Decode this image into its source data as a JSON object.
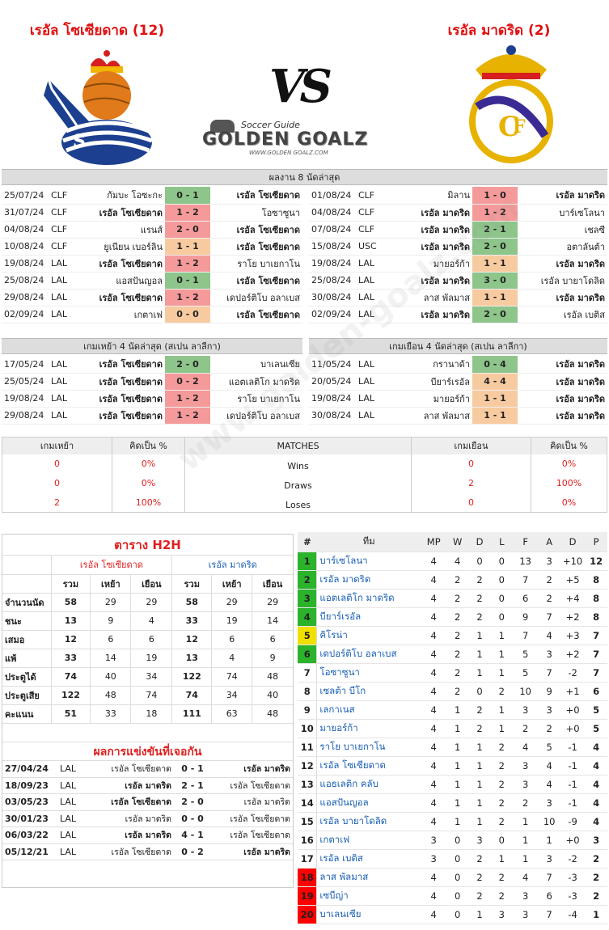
{
  "header": {
    "home_title": "เรอัล โซเซียดาด (12)",
    "away_title": "เรอัล มาดริด (2)",
    "vs": "VS",
    "brand_small": "Soccer Guide",
    "brand_big": "GOLDEN GOALZ",
    "brand_url": "WWW.GOLDEN GOALZ.COM",
    "home_logo": "real-sociedad-crest",
    "away_logo": "real-madrid-crest"
  },
  "last8": {
    "title": "ผลงาน 8 นัดล่าสุด",
    "home": [
      {
        "date": "25/07/24",
        "comp": "CLF",
        "home": "กัมบะ โอซะกะ",
        "score": "0 - 1",
        "away": "เรอัล โซเซียดาด",
        "color": "g",
        "bold": "away"
      },
      {
        "date": "31/07/24",
        "comp": "CLF",
        "home": "เรอัล โซเซียดาด",
        "score": "1 - 2",
        "away": "โอซาซูนา",
        "color": "r",
        "bold": "home"
      },
      {
        "date": "04/08/24",
        "comp": "CLF",
        "home": "แรนส์",
        "score": "2 - 0",
        "away": "เรอัล โซเซียดาด",
        "color": "r",
        "bold": "away"
      },
      {
        "date": "10/08/24",
        "comp": "CLF",
        "home": "ยูเนียน เบอร์ลิน",
        "score": "1 - 1",
        "away": "เรอัล โซเซียดาด",
        "color": "o",
        "bold": "away"
      },
      {
        "date": "19/08/24",
        "comp": "LAL",
        "home": "เรอัล โซเซียดาด",
        "score": "1 - 2",
        "away": "ราโย บาเยกาโน",
        "color": "r",
        "bold": "home"
      },
      {
        "date": "25/08/24",
        "comp": "LAL",
        "home": "แอสปันญอล",
        "score": "0 - 1",
        "away": "เรอัล โซเซียดาด",
        "color": "g",
        "bold": "away"
      },
      {
        "date": "29/08/24",
        "comp": "LAL",
        "home": "เรอัล โซเซียดาด",
        "score": "1 - 2",
        "away": "เดปอร์ติโบ อลาเบส",
        "color": "r",
        "bold": "home"
      },
      {
        "date": "02/09/24",
        "comp": "LAL",
        "home": "เกตาเฟ",
        "score": "0 - 0",
        "away": "เรอัล โซเซียดาด",
        "color": "o",
        "bold": "away"
      }
    ],
    "away": [
      {
        "date": "01/08/24",
        "comp": "CLF",
        "home": "มิลาน",
        "score": "1 - 0",
        "away": "เรอัล มาดริด",
        "color": "r",
        "bold": "away"
      },
      {
        "date": "04/08/24",
        "comp": "CLF",
        "home": "เรอัล มาดริด",
        "score": "1 - 2",
        "away": "บาร์เซโลนา",
        "color": "r",
        "bold": "home"
      },
      {
        "date": "07/08/24",
        "comp": "CLF",
        "home": "เรอัล มาดริด",
        "score": "2 - 1",
        "away": "เชลซี",
        "color": "g",
        "bold": "home"
      },
      {
        "date": "15/08/24",
        "comp": "USC",
        "home": "เรอัล มาดริด",
        "score": "2 - 0",
        "away": "อตาลันต้า",
        "color": "g",
        "bold": "home"
      },
      {
        "date": "19/08/24",
        "comp": "LAL",
        "home": "มายอร์ก้า",
        "score": "1 - 1",
        "away": "เรอัล มาดริด",
        "color": "o",
        "bold": "away"
      },
      {
        "date": "25/08/24",
        "comp": "LAL",
        "home": "เรอัล มาดริด",
        "score": "3 - 0",
        "away": "เรอัล บายาโดลิด",
        "color": "g",
        "bold": "home"
      },
      {
        "date": "30/08/24",
        "comp": "LAL",
        "home": "ลาส พัลมาส",
        "score": "1 - 1",
        "away": "เรอัล มาดริด",
        "color": "o",
        "bold": "away"
      },
      {
        "date": "02/09/24",
        "comp": "LAL",
        "home": "เรอัล มาดริด",
        "score": "2 - 0",
        "away": "เรอัล เบติส",
        "color": "g",
        "bold": "home"
      }
    ]
  },
  "last4": {
    "home_title": "เกมเหย้า 4 นัดล่าสุด (สเปน ลาลีกา)",
    "away_title": "เกมเยือน 4 นัดล่าสุด (สเปน ลาลีกา)",
    "home": [
      {
        "date": "17/05/24",
        "comp": "LAL",
        "home": "เรอัล โซเซียดาด",
        "score": "2 - 0",
        "away": "บาเลนเซีย",
        "color": "g",
        "bold": "home"
      },
      {
        "date": "25/05/24",
        "comp": "LAL",
        "home": "เรอัล โซเซียดาด",
        "score": "0 - 2",
        "away": "แอตเลติโก มาดริด",
        "color": "r",
        "bold": "home"
      },
      {
        "date": "19/08/24",
        "comp": "LAL",
        "home": "เรอัล โซเซียดาด",
        "score": "1 - 2",
        "away": "ราโย บาเยกาโน",
        "color": "r",
        "bold": "home"
      },
      {
        "date": "29/08/24",
        "comp": "LAL",
        "home": "เรอัล โซเซียดาด",
        "score": "1 - 2",
        "away": "เดปอร์ติโบ อลาเบส",
        "color": "r",
        "bold": "home"
      }
    ],
    "away": [
      {
        "date": "11/05/24",
        "comp": "LAL",
        "home": "กรานาด้า",
        "score": "0 - 4",
        "away": "เรอัล มาดริด",
        "color": "g",
        "bold": "away"
      },
      {
        "date": "20/05/24",
        "comp": "LAL",
        "home": "บียาร์เรอัล",
        "score": "4 - 4",
        "away": "เรอัล มาดริด",
        "color": "o",
        "bold": "away"
      },
      {
        "date": "19/08/24",
        "comp": "LAL",
        "home": "มายอร์ก้า",
        "score": "1 - 1",
        "away": "เรอัล มาดริด",
        "color": "o",
        "bold": "away"
      },
      {
        "date": "30/08/24",
        "comp": "LAL",
        "home": "ลาส พัลมาส",
        "score": "1 - 1",
        "away": "เรอัล มาดริด",
        "color": "o",
        "bold": "away"
      }
    ]
  },
  "matches": {
    "headers": [
      "เกมเหย้า",
      "คิดเป็น %",
      "MATCHES",
      "เกมเยือน",
      "คิดเป็น %"
    ],
    "rows": [
      {
        "h": "0",
        "hp": "0%",
        "label": "Wins",
        "a": "0",
        "ap": "0%"
      },
      {
        "h": "0",
        "hp": "0%",
        "label": "Draws",
        "a": "2",
        "ap": "100%"
      },
      {
        "h": "2",
        "hp": "100%",
        "label": "Loses",
        "a": "0",
        "ap": "0%"
      }
    ]
  },
  "h2h": {
    "title": "ตาราง H2H",
    "home_team": "เรอัล โซเซียดาด",
    "away_team": "เรอัล มาดริด",
    "cols": [
      "รวม",
      "เหย้า",
      "เยือน",
      "รวม",
      "เหย้า",
      "เยือน"
    ],
    "rows": [
      {
        "label": "จำนวนนัด",
        "v": [
          "58",
          "29",
          "29",
          "58",
          "29",
          "29"
        ]
      },
      {
        "label": "ชนะ",
        "v": [
          "13",
          "9",
          "4",
          "33",
          "19",
          "14"
        ]
      },
      {
        "label": "เสมอ",
        "v": [
          "12",
          "6",
          "6",
          "12",
          "6",
          "6"
        ]
      },
      {
        "label": "แพ้",
        "v": [
          "33",
          "14",
          "19",
          "13",
          "4",
          "9"
        ]
      },
      {
        "label": "ประตูได้",
        "v": [
          "74",
          "40",
          "34",
          "122",
          "74",
          "48"
        ]
      },
      {
        "label": "ประตูเสีย",
        "v": [
          "122",
          "48",
          "74",
          "74",
          "34",
          "40"
        ]
      },
      {
        "label": "คะแนน",
        "v": [
          "51",
          "33",
          "18",
          "111",
          "63",
          "48"
        ]
      }
    ],
    "results_title": "ผลการแข่งขันที่เจอกัน",
    "results": [
      {
        "date": "27/04/24",
        "comp": "LAL",
        "home": "เรอัล โซเซียดาด",
        "score": "0 - 1",
        "away": "เรอัล มาดริด",
        "bold": "away"
      },
      {
        "date": "18/09/23",
        "comp": "LAL",
        "home": "เรอัล มาดริด",
        "score": "2 - 1",
        "away": "เรอัล โซเซียดาด",
        "bold": "home"
      },
      {
        "date": "03/05/23",
        "comp": "LAL",
        "home": "เรอัล โซเซียดาด",
        "score": "2 - 0",
        "away": "เรอัล มาดริด",
        "bold": "home"
      },
      {
        "date": "30/01/23",
        "comp": "LAL",
        "home": "เรอัล มาดริด",
        "score": "0 - 0",
        "away": "เรอัล โซเซียดาด",
        "bold": ""
      },
      {
        "date": "06/03/22",
        "comp": "LAL",
        "home": "เรอัล มาดริด",
        "score": "4 - 1",
        "away": "เรอัล โซเซียดาด",
        "bold": "home"
      },
      {
        "date": "05/12/21",
        "comp": "LAL",
        "home": "เรอัล โซเซียดาด",
        "score": "0 - 2",
        "away": "เรอัล มาดริด",
        "bold": "away"
      }
    ]
  },
  "league": {
    "headers": [
      "#",
      "ทีม",
      "MP",
      "W",
      "D",
      "L",
      "F",
      "A",
      "D",
      "P"
    ],
    "rows": [
      {
        "rank": "1",
        "team": "บาร์เซโลนา",
        "mp": "4",
        "w": "4",
        "d": "0",
        "l": "0",
        "f": "13",
        "a": "3",
        "gd": "+10",
        "p": "12",
        "zone": "g"
      },
      {
        "rank": "2",
        "team": "เรอัล มาดริด",
        "mp": "4",
        "w": "2",
        "d": "2",
        "l": "0",
        "f": "7",
        "a": "2",
        "gd": "+5",
        "p": "8",
        "zone": "g"
      },
      {
        "rank": "3",
        "team": "แอตเลติโก มาดริด",
        "mp": "4",
        "w": "2",
        "d": "2",
        "l": "0",
        "f": "6",
        "a": "2",
        "gd": "+4",
        "p": "8",
        "zone": "g"
      },
      {
        "rank": "4",
        "team": "บียาร์เรอัล",
        "mp": "4",
        "w": "2",
        "d": "2",
        "l": "0",
        "f": "9",
        "a": "7",
        "gd": "+2",
        "p": "8",
        "zone": "g"
      },
      {
        "rank": "5",
        "team": "คิโรน่า",
        "mp": "4",
        "w": "2",
        "d": "1",
        "l": "1",
        "f": "7",
        "a": "4",
        "gd": "+3",
        "p": "7",
        "zone": "y"
      },
      {
        "rank": "6",
        "team": "เดปอร์ติโบ อลาเบส",
        "mp": "4",
        "w": "2",
        "d": "1",
        "l": "1",
        "f": "5",
        "a": "3",
        "gd": "+2",
        "p": "7",
        "zone": "g"
      },
      {
        "rank": "7",
        "team": "โอซาซูนา",
        "mp": "4",
        "w": "2",
        "d": "1",
        "l": "1",
        "f": "5",
        "a": "7",
        "gd": "-2",
        "p": "7",
        "zone": ""
      },
      {
        "rank": "8",
        "team": "เซลต้า บีโก",
        "mp": "4",
        "w": "2",
        "d": "0",
        "l": "2",
        "f": "10",
        "a": "9",
        "gd": "+1",
        "p": "6",
        "zone": ""
      },
      {
        "rank": "9",
        "team": "เลกาเนส",
        "mp": "4",
        "w": "1",
        "d": "2",
        "l": "1",
        "f": "3",
        "a": "3",
        "gd": "+0",
        "p": "5",
        "zone": ""
      },
      {
        "rank": "10",
        "team": "มายอร์ก้า",
        "mp": "4",
        "w": "1",
        "d": "2",
        "l": "1",
        "f": "2",
        "a": "2",
        "gd": "+0",
        "p": "5",
        "zone": ""
      },
      {
        "rank": "11",
        "team": "ราโย บาเยกาโน",
        "mp": "4",
        "w": "1",
        "d": "1",
        "l": "2",
        "f": "4",
        "a": "5",
        "gd": "-1",
        "p": "4",
        "zone": ""
      },
      {
        "rank": "12",
        "team": "เรอัล โซเซียดาด",
        "mp": "4",
        "w": "1",
        "d": "1",
        "l": "2",
        "f": "3",
        "a": "4",
        "gd": "-1",
        "p": "4",
        "zone": ""
      },
      {
        "rank": "13",
        "team": "แอธเลติก คลับ",
        "mp": "4",
        "w": "1",
        "d": "1",
        "l": "2",
        "f": "3",
        "a": "4",
        "gd": "-1",
        "p": "4",
        "zone": ""
      },
      {
        "rank": "14",
        "team": "แอสปันญอล",
        "mp": "4",
        "w": "1",
        "d": "1",
        "l": "2",
        "f": "2",
        "a": "3",
        "gd": "-1",
        "p": "4",
        "zone": ""
      },
      {
        "rank": "15",
        "team": "เรอัล บายาโดลิด",
        "mp": "4",
        "w": "1",
        "d": "1",
        "l": "2",
        "f": "1",
        "a": "10",
        "gd": "-9",
        "p": "4",
        "zone": ""
      },
      {
        "rank": "16",
        "team": "เกตาเฟ",
        "mp": "3",
        "w": "0",
        "d": "3",
        "l": "0",
        "f": "1",
        "a": "1",
        "gd": "+0",
        "p": "3",
        "zone": ""
      },
      {
        "rank": "17",
        "team": "เรอัล เบติส",
        "mp": "3",
        "w": "0",
        "d": "2",
        "l": "1",
        "f": "1",
        "a": "3",
        "gd": "-2",
        "p": "2",
        "zone": ""
      },
      {
        "rank": "18",
        "team": "ลาส พัลมาส",
        "mp": "4",
        "w": "0",
        "d": "2",
        "l": "2",
        "f": "4",
        "a": "7",
        "gd": "-3",
        "p": "2",
        "zone": "r"
      },
      {
        "rank": "19",
        "team": "เซบีญ่า",
        "mp": "4",
        "w": "0",
        "d": "2",
        "l": "2",
        "f": "3",
        "a": "6",
        "gd": "-3",
        "p": "2",
        "zone": "r"
      },
      {
        "rank": "20",
        "team": "บาเลนเซีย",
        "mp": "4",
        "w": "0",
        "d": "1",
        "l": "3",
        "f": "3",
        "a": "7",
        "gd": "-4",
        "p": "1",
        "zone": "r"
      }
    ]
  },
  "watermark": "www.golden-goalz.com"
}
